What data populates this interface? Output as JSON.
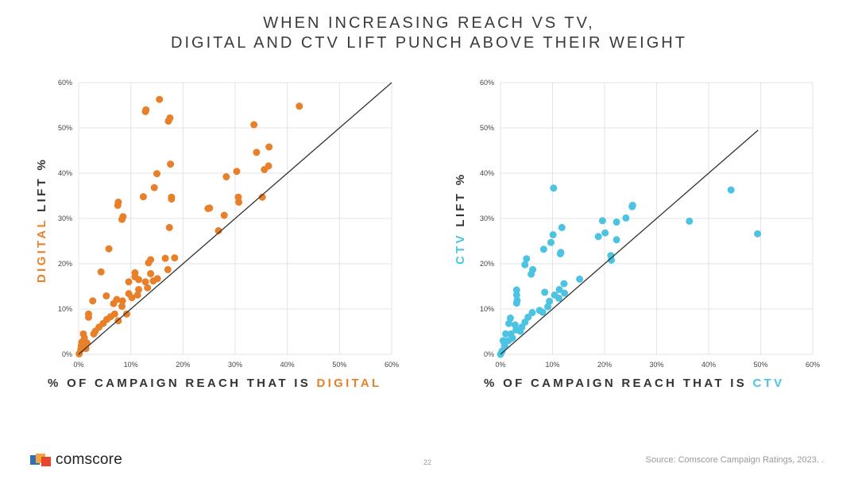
{
  "title": {
    "line1": "WHEN INCREASING REACH VS TV,",
    "line2": "DIGITAL AND CTV LIFT PUNCH ABOVE THEIR WEIGHT"
  },
  "colors": {
    "digital": "#E8802A",
    "ctv": "#4CC3E3",
    "line": "#333333",
    "grid": "#E3E3E3"
  },
  "chart_data": [
    {
      "type": "scatter",
      "name": "digital",
      "xlabel_prefix": "% OF CAMPAIGN REACH THAT IS ",
      "xlabel_highlight": "DIGITAL",
      "ylabel_highlight": "DIGITAL",
      "ylabel_suffix": " LIFT %",
      "xlim": [
        0,
        60
      ],
      "ylim": [
        0,
        60
      ],
      "xticks": [
        "0%",
        "10%",
        "20%",
        "30%",
        "40%",
        "50%",
        "60%"
      ],
      "yticks": [
        "0%",
        "10%",
        "20%",
        "30%",
        "40%",
        "50%",
        "60%"
      ],
      "grid": true,
      "reference_line": {
        "from": [
          0,
          0
        ],
        "to": [
          60,
          60
        ]
      },
      "points": [
        [
          15.5,
          56.3
        ],
        [
          12.9,
          54.0
        ],
        [
          12.8,
          53.6
        ],
        [
          17.5,
          52.2
        ],
        [
          17.2,
          51.5
        ],
        [
          42.3,
          54.8
        ],
        [
          33.6,
          50.7
        ],
        [
          36.5,
          45.8
        ],
        [
          34.1,
          44.6
        ],
        [
          36.4,
          41.6
        ],
        [
          35.6,
          40.8
        ],
        [
          17.6,
          42.0
        ],
        [
          15.0,
          39.9
        ],
        [
          14.5,
          36.8
        ],
        [
          12.4,
          34.8
        ],
        [
          17.8,
          34.7
        ],
        [
          17.8,
          34.3
        ],
        [
          7.6,
          33.6
        ],
        [
          7.5,
          32.9
        ],
        [
          8.5,
          30.4
        ],
        [
          8.3,
          29.8
        ],
        [
          17.4,
          28.0
        ],
        [
          5.8,
          23.3
        ],
        [
          30.3,
          40.4
        ],
        [
          28.3,
          39.2
        ],
        [
          30.6,
          34.7
        ],
        [
          30.7,
          33.6
        ],
        [
          25.1,
          32.3
        ],
        [
          24.8,
          32.2
        ],
        [
          27.9,
          30.7
        ],
        [
          26.8,
          27.3
        ],
        [
          35.2,
          34.7
        ],
        [
          16.6,
          21.2
        ],
        [
          18.4,
          21.3
        ],
        [
          13.8,
          20.9
        ],
        [
          13.4,
          20.2
        ],
        [
          17.1,
          18.7
        ],
        [
          4.3,
          18.2
        ],
        [
          13.8,
          17.8
        ],
        [
          10.8,
          18.0
        ],
        [
          10.8,
          17.1
        ],
        [
          11.5,
          16.5
        ],
        [
          12.8,
          16.0
        ],
        [
          14.3,
          16.2
        ],
        [
          15.1,
          16.7
        ],
        [
          9.6,
          16.0
        ],
        [
          13.2,
          14.7
        ],
        [
          11.5,
          14.3
        ],
        [
          9.6,
          13.4
        ],
        [
          11.3,
          13.1
        ],
        [
          10.2,
          12.5
        ],
        [
          5.3,
          12.9
        ],
        [
          2.7,
          11.8
        ],
        [
          7.3,
          12.1
        ],
        [
          6.7,
          11.2
        ],
        [
          8.4,
          11.8
        ],
        [
          8.3,
          10.6
        ],
        [
          9.2,
          8.9
        ],
        [
          7.6,
          7.4
        ],
        [
          1.9,
          8.9
        ],
        [
          1.9,
          8.2
        ],
        [
          6.9,
          8.9
        ],
        [
          6.1,
          8.3
        ],
        [
          5.4,
          7.7
        ],
        [
          4.7,
          6.8
        ],
        [
          3.9,
          6.0
        ],
        [
          3.2,
          5.1
        ],
        [
          2.9,
          4.5
        ],
        [
          0.9,
          4.5
        ],
        [
          1.1,
          3.6
        ],
        [
          0.6,
          2.7
        ],
        [
          1.6,
          2.5
        ],
        [
          0.4,
          1.0
        ],
        [
          0.1,
          0.1
        ],
        [
          0.5,
          1.9
        ],
        [
          1.4,
          1.3
        ]
      ]
    },
    {
      "type": "scatter",
      "name": "ctv",
      "xlabel_prefix": "% OF CAMPAIGN REACH THAT IS ",
      "xlabel_highlight": "CTV",
      "ylabel_highlight": "CTV",
      "ylabel_suffix": " LIFT %",
      "xlim": [
        0,
        60
      ],
      "ylim": [
        0,
        60
      ],
      "xticks": [
        "0%",
        "10%",
        "20%",
        "30%",
        "40%",
        "50%",
        "60%"
      ],
      "yticks": [
        "0%",
        "10%",
        "20%",
        "30%",
        "40%",
        "50%",
        "60%"
      ],
      "grid": true,
      "reference_line": {
        "from": [
          0,
          0
        ],
        "to": [
          49.5,
          49.5
        ]
      },
      "points": [
        [
          10.2,
          36.7
        ],
        [
          44.3,
          36.3
        ],
        [
          25.4,
          32.9
        ],
        [
          25.3,
          32.6
        ],
        [
          24.1,
          30.1
        ],
        [
          19.6,
          29.5
        ],
        [
          22.3,
          29.2
        ],
        [
          36.3,
          29.4
        ],
        [
          11.8,
          28.0
        ],
        [
          20.1,
          26.8
        ],
        [
          18.8,
          26.0
        ],
        [
          10.1,
          26.4
        ],
        [
          49.4,
          26.6
        ],
        [
          9.7,
          24.7
        ],
        [
          22.3,
          25.3
        ],
        [
          8.3,
          23.2
        ],
        [
          11.6,
          22.5
        ],
        [
          11.5,
          22.2
        ],
        [
          21.2,
          21.8
        ],
        [
          21.3,
          20.8
        ],
        [
          5.0,
          21.1
        ],
        [
          4.7,
          19.8
        ],
        [
          6.2,
          18.7
        ],
        [
          5.9,
          17.7
        ],
        [
          15.2,
          16.6
        ],
        [
          12.2,
          15.6
        ],
        [
          3.1,
          14.2
        ],
        [
          3.1,
          13.1
        ],
        [
          3.2,
          11.9
        ],
        [
          3.1,
          11.3
        ],
        [
          8.5,
          13.7
        ],
        [
          11.3,
          14.3
        ],
        [
          10.4,
          13.1
        ],
        [
          12.3,
          13.5
        ],
        [
          11.2,
          12.4
        ],
        [
          9.4,
          11.7
        ],
        [
          9.1,
          10.5
        ],
        [
          7.5,
          9.7
        ],
        [
          8.1,
          9.3
        ],
        [
          6.1,
          9.2
        ],
        [
          5.3,
          8.2
        ],
        [
          1.9,
          8.0
        ],
        [
          1.6,
          6.8
        ],
        [
          4.1,
          6.0
        ],
        [
          2.8,
          6.5
        ],
        [
          4.7,
          7.1
        ],
        [
          3.0,
          5.4
        ],
        [
          2.0,
          4.5
        ],
        [
          1.0,
          4.5
        ],
        [
          0.5,
          3.0
        ],
        [
          1.5,
          3.0
        ],
        [
          0.8,
          1.9
        ],
        [
          0.3,
          0.7
        ],
        [
          0,
          0
        ],
        [
          2.3,
          3.6
        ],
        [
          3.8,
          5.1
        ]
      ]
    }
  ],
  "footer": {
    "logo_text": "comscore",
    "page_number": "22",
    "source": "Source: Comscore Campaign Ratings, 2023. ."
  }
}
